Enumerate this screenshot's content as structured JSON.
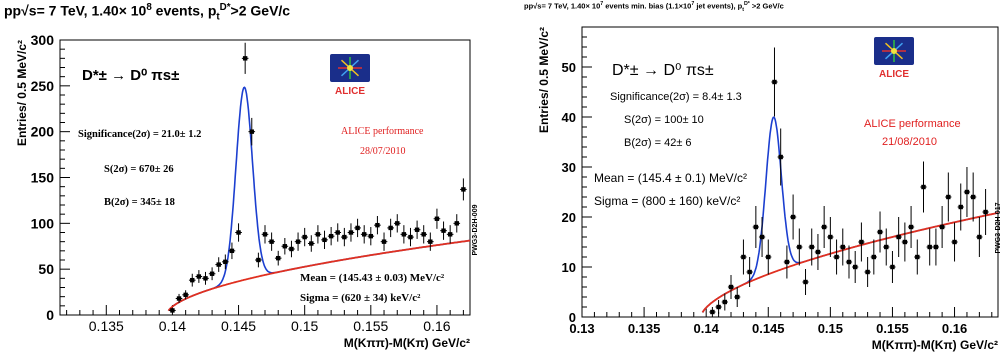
{
  "chart_data": [
    {
      "type": "scatter",
      "title": "pp√s= 7 TeV, 1.40× 10⁸ events, pₜᴰ* >2 GeV/c",
      "xlabel": "M(Kππ)-M(Kπ) GeV/c²",
      "ylabel": "Entries/ 0.5 MeV/c²",
      "xlim": [
        0.1315,
        0.1625
      ],
      "ylim": [
        0,
        300
      ],
      "xticks": [
        "0.135",
        "0.14",
        "0.145",
        "0.15",
        "0.155",
        "0.16"
      ],
      "yticks": [
        "0",
        "50",
        "100",
        "150",
        "200",
        "250",
        "300"
      ],
      "series": [
        {
          "name": "data",
          "x": [
            0.14,
            0.1405,
            0.141,
            0.1415,
            0.142,
            0.1425,
            0.143,
            0.1435,
            0.144,
            0.1445,
            0.145,
            0.1455,
            0.146,
            0.1465,
            0.147,
            0.1475,
            0.148,
            0.1485,
            0.149,
            0.1495,
            0.15,
            0.1505,
            0.151,
            0.1515,
            0.152,
            0.1525,
            0.153,
            0.1535,
            0.154,
            0.1545,
            0.155,
            0.1555,
            0.156,
            0.1565,
            0.157,
            0.1575,
            0.158,
            0.1585,
            0.159,
            0.1595,
            0.16,
            0.1605,
            0.161,
            0.1615,
            0.162
          ],
          "y": [
            5,
            18,
            22,
            38,
            42,
            40,
            45,
            55,
            58,
            70,
            90,
            280,
            200,
            60,
            88,
            80,
            62,
            75,
            72,
            80,
            85,
            78,
            88,
            82,
            86,
            90,
            85,
            90,
            95,
            88,
            86,
            98,
            80,
            95,
            100,
            88,
            85,
            93,
            88,
            80,
            105,
            92,
            88,
            100,
            137
          ],
          "err": [
            3,
            5,
            5,
            7,
            7,
            7,
            7,
            8,
            8,
            9,
            10,
            17,
            15,
            8,
            10,
            10,
            8,
            9,
            9,
            10,
            10,
            9,
            10,
            10,
            10,
            10,
            10,
            10,
            10,
            10,
            10,
            10,
            10,
            10,
            10,
            10,
            10,
            10,
            10,
            10,
            11,
            10,
            10,
            10,
            12
          ]
        },
        {
          "name": "background fit",
          "color": "#e03020"
        },
        {
          "name": "total fit",
          "color": "#1c3fd0"
        }
      ],
      "annotations": {
        "decay": "D*± → D⁰ πs±",
        "significance": "Significance(2σ) = 21.0± 1.2",
        "signal": "S(2σ) = 670± 26",
        "background": "B(2σ) = 345± 18",
        "performance": "ALICE performance",
        "date": "28/07/2010",
        "mean": "Mean = (145.43 ± 0.03) MeV/c²",
        "sigma": "Sigma = (620 ± 34) keV/c²",
        "side_label": "PWG3-D2H-009",
        "logo": "ALICE"
      }
    },
    {
      "type": "scatter",
      "title": "pp√s= 7 TeV, 1.40× 10⁷ events min. bias (1.1×10⁷ jet events), pₜᴰ* >2 GeV/c",
      "xlabel": "M(Kππ)-M(Kπ) GeV/c²",
      "ylabel": "Entries/ 0.5 MeV/c²",
      "xlim": [
        0.13,
        0.1635
      ],
      "ylim": [
        0,
        58
      ],
      "xticks": [
        "0.13",
        "0.135",
        "0.14",
        "0.145",
        "0.15",
        "0.155",
        "0.16"
      ],
      "yticks": [
        "0",
        "10",
        "20",
        "30",
        "40",
        "50"
      ],
      "series": [
        {
          "name": "data",
          "x": [
            0.1405,
            0.141,
            0.1415,
            0.142,
            0.1425,
            0.143,
            0.1435,
            0.144,
            0.1445,
            0.145,
            0.1455,
            0.146,
            0.1465,
            0.147,
            0.1475,
            0.148,
            0.1485,
            0.149,
            0.1495,
            0.15,
            0.1505,
            0.151,
            0.1515,
            0.152,
            0.1525,
            0.153,
            0.1535,
            0.154,
            0.1545,
            0.155,
            0.1555,
            0.156,
            0.1565,
            0.157,
            0.1575,
            0.158,
            0.1585,
            0.159,
            0.1595,
            0.16,
            0.1605,
            0.161,
            0.1615,
            0.162,
            0.1625
          ],
          "y": [
            1,
            2,
            3,
            6,
            4,
            12,
            9,
            18,
            16,
            12,
            47,
            32,
            11,
            20,
            14,
            7,
            14,
            13,
            18,
            16,
            12,
            14,
            11,
            10,
            15,
            9,
            12,
            17,
            14,
            10,
            16,
            15,
            18,
            12,
            26,
            14,
            14,
            18,
            24,
            15,
            22,
            25,
            24,
            16,
            21
          ],
          "err": [
            1,
            1.4,
            1.7,
            2.4,
            2,
            3.5,
            3,
            4.2,
            4,
            3.5,
            6.9,
            5.7,
            3.3,
            4.5,
            3.7,
            2.6,
            3.7,
            3.6,
            4.2,
            4,
            3.5,
            3.7,
            3.3,
            3.2,
            3.9,
            3,
            3.5,
            4.1,
            3.7,
            3.2,
            4,
            3.9,
            4.2,
            3.5,
            5.1,
            3.7,
            3.7,
            4.2,
            4.9,
            3.9,
            4.7,
            5,
            4.9,
            4,
            4.6
          ]
        },
        {
          "name": "background fit",
          "color": "#e03020"
        },
        {
          "name": "total fit",
          "color": "#1c3fd0"
        }
      ],
      "annotations": {
        "decay": "D*± → D⁰ πs±",
        "significance": "Significance(2σ) = 8.4± 1.3",
        "signal": "S(2σ) = 100± 10",
        "background": "B(2σ) = 42± 6",
        "performance": "ALICE performance",
        "date": "21/08/2010",
        "mean": "Mean = (145.4 ± 0.1) MeV/c²",
        "sigma": "Sigma = (800 ± 160) keV/c²",
        "side_label": "PWG3-D2H-017",
        "logo": "ALICE"
      }
    }
  ]
}
